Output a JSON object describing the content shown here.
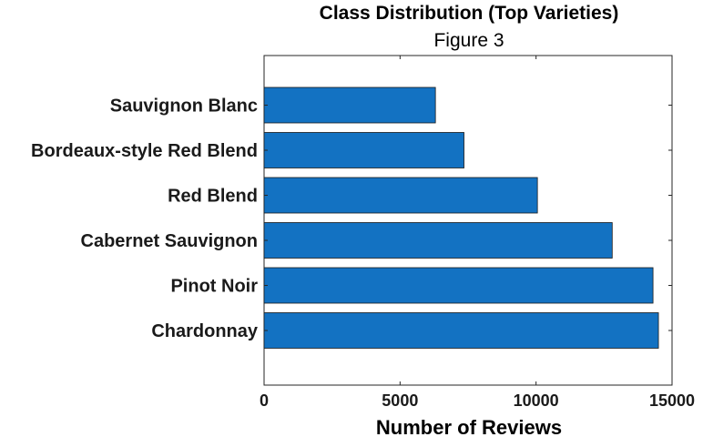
{
  "chart_data": {
    "type": "bar",
    "orientation": "horizontal",
    "title": "Class Distribution (Top Varieties)",
    "subtitle": "Figure 3",
    "xlabel": "Number of Reviews",
    "ylabel": "",
    "categories": [
      "Chardonnay",
      "Pinot Noir",
      "Cabernet Sauvignon",
      "Red Blend",
      "Bordeaux-style Red Blend",
      "Sauvignon Blanc"
    ],
    "values": [
      14500,
      14300,
      12800,
      10050,
      7350,
      6300
    ],
    "xlim": [
      0,
      15000
    ],
    "xticks": [
      0,
      5000,
      10000,
      15000
    ],
    "xtick_labels": [
      "0",
      "5000",
      "10000",
      "15000"
    ],
    "grid": false,
    "legend": "none",
    "colors": {
      "bar": "#1372c2",
      "bar_edge": "#1a1a1a",
      "axis": "#262626"
    }
  }
}
